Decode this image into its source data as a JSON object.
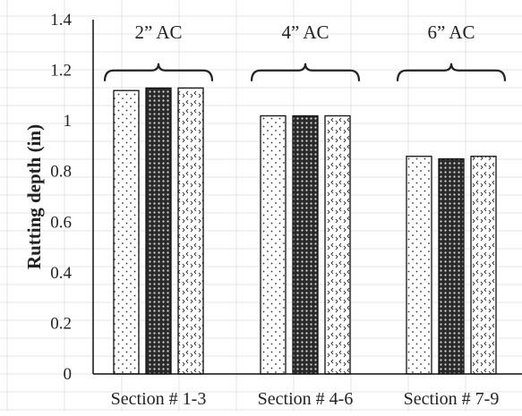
{
  "chart_data": {
    "type": "bar",
    "title": "",
    "xlabel": "",
    "ylabel": "Rutting depth (in)",
    "ylim": [
      0,
      1.4
    ],
    "yticks": [
      0,
      0.2,
      0.4,
      0.6,
      0.8,
      1,
      1.2,
      1.4
    ],
    "ytick_labels": [
      "0",
      "0.2",
      "0.4",
      "0.6",
      "0.8",
      "1",
      "1.2",
      "1.4"
    ],
    "categories": [
      "Section # 1-3",
      "Section # 4-6",
      "Section # 7-9"
    ],
    "group_annotations": [
      "2” AC",
      "4” AC",
      "6” AC"
    ],
    "series": [
      {
        "values": [
          1.12,
          1.02,
          0.86
        ],
        "pattern": "dots"
      },
      {
        "values": [
          1.13,
          1.02,
          0.85
        ],
        "pattern": "dense-crosshatch"
      },
      {
        "values": [
          1.13,
          1.02,
          0.86
        ],
        "pattern": "chevrons"
      }
    ],
    "grid": true,
    "legend": "none"
  }
}
